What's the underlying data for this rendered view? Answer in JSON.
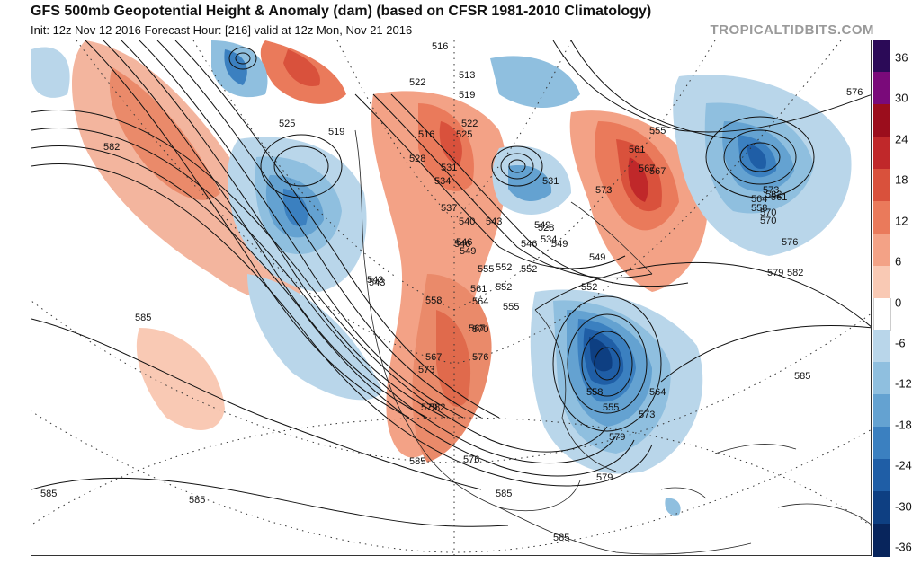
{
  "header": {
    "title": "GFS 500mb Geopotential Height & Anomaly (dam) (based on CFSR 1981-2010 Climatology)",
    "subtitle": "Init: 12z Nov 12 2016   Forecast Hour: [216]   valid at 12z Mon, Nov 21 2016",
    "watermark": "TROPICALTIDBITS.COM"
  },
  "colorbar": {
    "labels": [
      "36",
      "30",
      "24",
      "18",
      "12",
      "6",
      "0",
      "-6",
      "-12",
      "-18",
      "-24",
      "-30",
      "-36"
    ],
    "colors": [
      "#2b0a57",
      "#7a0a7a",
      "#9b0d1c",
      "#c0282a",
      "#d9513c",
      "#ea7a5b",
      "#f3a286",
      "#f9c9b4",
      "#ffffff",
      "#b9d6ea",
      "#8fbfdf",
      "#64a2d1",
      "#3b80c0",
      "#1f5ea6",
      "#0e3f82",
      "#08255c"
    ]
  },
  "contour_labels": [
    {
      "t": "516"
    },
    {
      "t": "513"
    },
    {
      "t": "519"
    },
    {
      "t": "522"
    },
    {
      "t": "525"
    },
    {
      "t": "519"
    },
    {
      "t": "582"
    },
    {
      "t": "528"
    },
    {
      "t": "531"
    },
    {
      "t": "534"
    },
    {
      "t": "537"
    },
    {
      "t": "540"
    },
    {
      "t": "543"
    },
    {
      "t": "546"
    },
    {
      "t": "549"
    },
    {
      "t": "552"
    },
    {
      "t": "555"
    },
    {
      "t": "558"
    },
    {
      "t": "561"
    },
    {
      "t": "564"
    },
    {
      "t": "567"
    },
    {
      "t": "570"
    },
    {
      "t": "573"
    },
    {
      "t": "576"
    },
    {
      "t": "579"
    },
    {
      "t": "582"
    },
    {
      "t": "585"
    },
    {
      "t": "585"
    },
    {
      "t": "585"
    },
    {
      "t": "585"
    },
    {
      "t": "585"
    },
    {
      "t": "585"
    },
    {
      "t": "576"
    },
    {
      "t": "579"
    },
    {
      "t": "582"
    },
    {
      "t": "585"
    },
    {
      "t": "549"
    },
    {
      "t": "552"
    },
    {
      "t": "555"
    },
    {
      "t": "558"
    },
    {
      "t": "561"
    },
    {
      "t": "564"
    },
    {
      "t": "567"
    },
    {
      "t": "570"
    },
    {
      "t": "573"
    },
    {
      "t": "543"
    },
    {
      "t": "546"
    },
    {
      "t": "549"
    },
    {
      "t": "552"
    },
    {
      "t": "555"
    },
    {
      "t": "561"
    },
    {
      "t": "567"
    },
    {
      "t": "573"
    },
    {
      "t": "531"
    },
    {
      "t": "534"
    },
    {
      "t": "528"
    },
    {
      "t": "516"
    },
    {
      "t": "522"
    },
    {
      "t": "525"
    },
    {
      "t": "543"
    },
    {
      "t": "576"
    },
    {
      "t": "582"
    },
    {
      "t": "579"
    },
    {
      "t": "567"
    },
    {
      "t": "555"
    },
    {
      "t": "552"
    },
    {
      "t": "546"
    },
    {
      "t": "549"
    },
    {
      "t": "558"
    },
    {
      "t": "564"
    },
    {
      "t": "570"
    },
    {
      "t": "573"
    },
    {
      "t": "576"
    },
    {
      "t": "579"
    }
  ]
}
